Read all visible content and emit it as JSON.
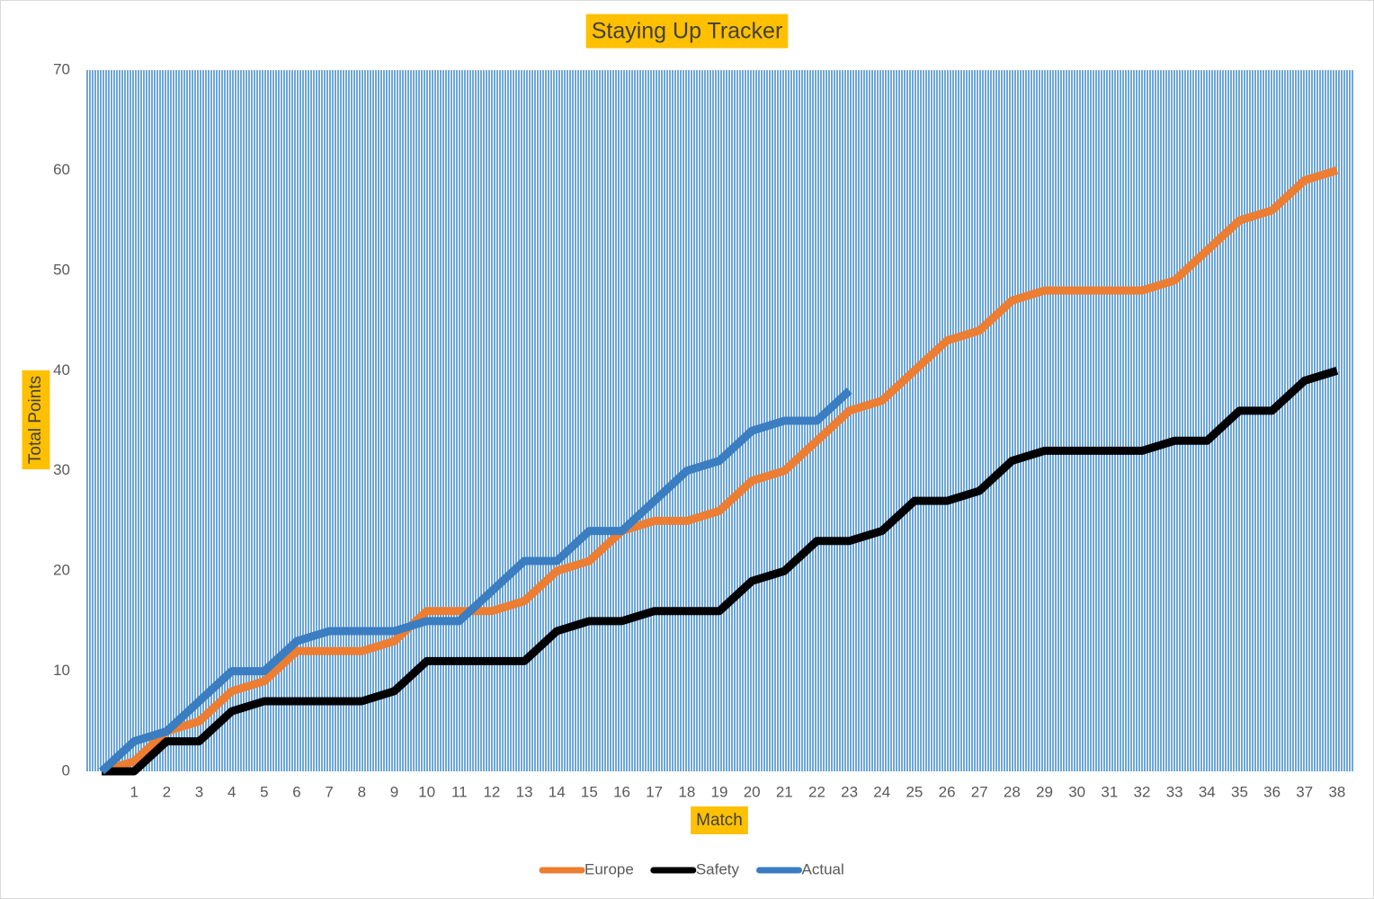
{
  "chart_data": {
    "type": "line",
    "title": "Staying Up Tracker",
    "x_label": "Match",
    "y_label": "Total Points",
    "categories": [
      null,
      1,
      2,
      3,
      4,
      5,
      6,
      7,
      8,
      9,
      10,
      11,
      12,
      13,
      14,
      15,
      16,
      17,
      18,
      19,
      20,
      21,
      22,
      23,
      24,
      25,
      26,
      27,
      28,
      29,
      30,
      31,
      32,
      33,
      34,
      35,
      36,
      37,
      38
    ],
    "series": [
      {
        "name": "Europe",
        "color": "#ed7d31",
        "values": [
          0,
          1,
          4,
          5,
          8,
          9,
          12,
          12,
          12,
          13,
          16,
          16,
          16,
          17,
          20,
          21,
          24,
          25,
          25,
          26,
          29,
          30,
          33,
          36,
          37,
          40,
          43,
          44,
          47,
          48,
          48,
          48,
          48,
          49,
          52,
          55,
          56,
          59,
          60
        ]
      },
      {
        "name": "Safety",
        "color": "#000000",
        "values": [
          0,
          0,
          3,
          3,
          6,
          7,
          7,
          7,
          7,
          8,
          11,
          11,
          11,
          11,
          14,
          15,
          15,
          16,
          16,
          16,
          19,
          20,
          23,
          23,
          24,
          27,
          27,
          28,
          31,
          32,
          32,
          32,
          32,
          33,
          33,
          36,
          36,
          39,
          40
        ]
      },
      {
        "name": "Actual",
        "color": "#3a7dc0",
        "values": [
          0,
          3,
          4,
          7,
          10,
          10,
          13,
          14,
          14,
          14,
          15,
          15,
          18,
          21,
          21,
          24,
          24,
          27,
          30,
          31,
          34,
          35,
          35,
          38,
          null,
          null,
          null,
          null,
          null,
          null,
          null,
          null,
          null,
          null,
          null,
          null,
          null,
          null,
          null
        ]
      }
    ],
    "ylim": [
      0,
      70
    ],
    "yticks": [
      0,
      10,
      20,
      30,
      40,
      50,
      60,
      70
    ],
    "grid": false,
    "legend": "bottom"
  }
}
